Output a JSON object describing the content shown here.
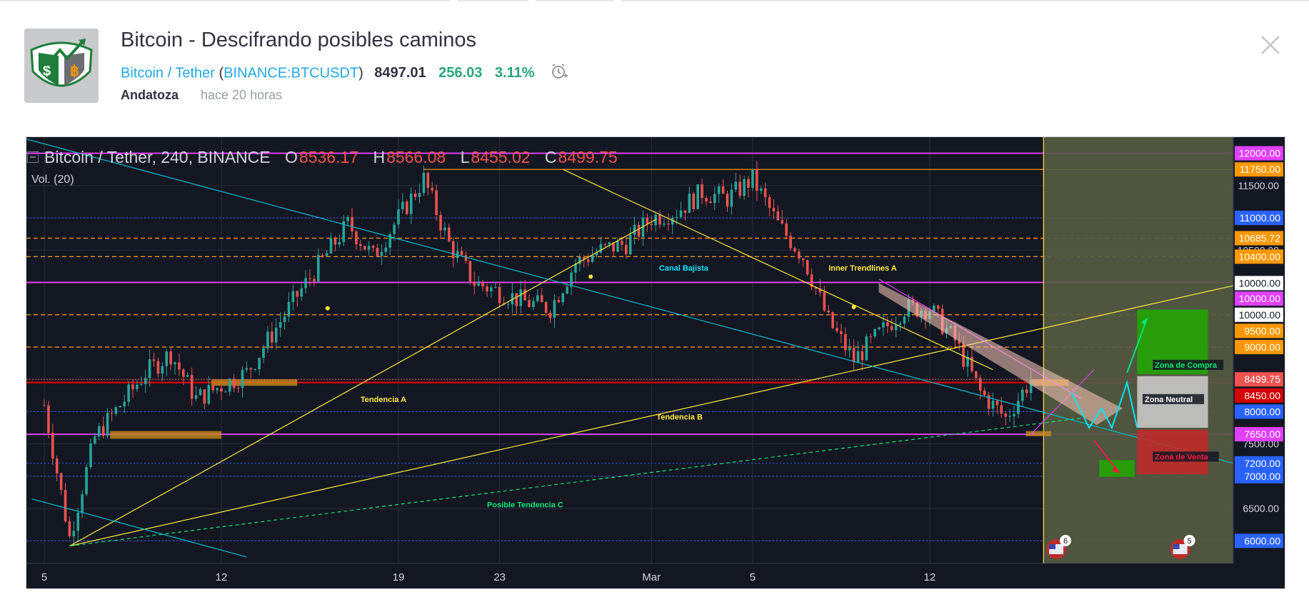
{
  "header": {
    "title": "Bitcoin - Descifrando posibles caminos",
    "symbol_name": "Bitcoin / Tether",
    "paren_open": " (",
    "ticker": "BINANCE:BTCUSDT",
    "paren_close": ")",
    "price": "8497.01",
    "change": "256.03",
    "change_pct": "3.11%",
    "author": "Andatoza",
    "time_ago": "hace 20 horas",
    "accent_color": "#1fa9e6",
    "up_color": "#26a67a"
  },
  "legend": {
    "symbol": "Bitcoin / Tether, 240, BINANCE",
    "o_label": "O",
    "o": "8536.17",
    "h_label": "H",
    "h": "8566.08",
    "l_label": "L",
    "l": "8455.02",
    "c_label": "C",
    "c": "8499.75",
    "volume": "Vol. (20)"
  },
  "chart_data": {
    "type": "candlestick",
    "symbol": "Bitcoin / Tether, 240, BINANCE",
    "ylim": [
      5650,
      12250
    ],
    "x_ticks": [
      "5",
      "12",
      "19",
      "23",
      "Mar",
      "5",
      "12"
    ],
    "y_ticks": [
      "11500.00",
      "10500.00",
      "9500.00",
      "8000.00",
      "7500.00",
      "6500.00"
    ],
    "approx_close_path": [
      {
        "x": "Feb 5",
        "y": 8100
      },
      {
        "x": "Feb 6",
        "y": 6050
      },
      {
        "x": "Feb 7",
        "y": 7600
      },
      {
        "x": "Feb 9",
        "y": 8600
      },
      {
        "x": "Feb 10",
        "y": 8900
      },
      {
        "x": "Feb 11",
        "y": 8200
      },
      {
        "x": "Feb 13",
        "y": 8600
      },
      {
        "x": "Feb 15",
        "y": 9800
      },
      {
        "x": "Feb 17",
        "y": 10900
      },
      {
        "x": "Feb 18",
        "y": 10400
      },
      {
        "x": "Feb 20",
        "y": 11600
      },
      {
        "x": "Feb 21",
        "y": 10600
      },
      {
        "x": "Feb 22",
        "y": 10000
      },
      {
        "x": "Feb 24",
        "y": 9700
      },
      {
        "x": "Feb 25",
        "y": 9600
      },
      {
        "x": "Feb 26",
        "y": 10300
      },
      {
        "x": "Feb 27",
        "y": 10500
      },
      {
        "x": "Feb 28",
        "y": 10600
      },
      {
        "x": "Mar 1",
        "y": 11000
      },
      {
        "x": "Mar 2",
        "y": 11100
      },
      {
        "x": "Mar 3",
        "y": 11400
      },
      {
        "x": "Mar 4",
        "y": 11300
      },
      {
        "x": "Mar 5",
        "y": 11600
      },
      {
        "x": "Mar 6",
        "y": 10900
      },
      {
        "x": "Mar 7",
        "y": 10400
      },
      {
        "x": "Mar 8",
        "y": 9400
      },
      {
        "x": "Mar 9",
        "y": 8800
      },
      {
        "x": "Mar 10",
        "y": 9200
      },
      {
        "x": "Mar 11",
        "y": 9600
      },
      {
        "x": "Mar 12",
        "y": 9600
      },
      {
        "x": "Mar 13",
        "y": 9100
      },
      {
        "x": "Mar 14",
        "y": 8300
      },
      {
        "x": "Mar 15",
        "y": 7900
      },
      {
        "x": "Mar 16",
        "y": 8499.75
      }
    ],
    "price_tags": [
      {
        "value": 12000,
        "label": "12000.00",
        "bg": "#e040fb",
        "fg": "#ffffff"
      },
      {
        "value": 11750,
        "label": "11750.00",
        "bg": "#ff9800",
        "fg": "#ffffff"
      },
      {
        "value": 11000,
        "label": "11000.00",
        "bg": "#2962ff",
        "fg": "#ffffff"
      },
      {
        "value": 10685.72,
        "label": "10685.72",
        "bg": "#ff9800",
        "fg": "#ffffff"
      },
      {
        "value": 10400,
        "label": "10400.00",
        "bg": "#ff9800",
        "fg": "#ffffff"
      },
      {
        "value": 10000,
        "label": "10000.00",
        "bg": "#ffffff",
        "fg": "#131722",
        "pos": 9990
      },
      {
        "value": 10000,
        "label": "10000.00",
        "bg": "#e040fb",
        "fg": "#ffffff",
        "pos": 9750
      },
      {
        "value": 10000,
        "label": "10000.00",
        "bg": "#ffffff",
        "fg": "#131722",
        "pos": 9500
      },
      {
        "value": 9500,
        "label": "9500.00",
        "bg": "#ff9800",
        "fg": "#ffffff",
        "pos": 9250
      },
      {
        "value": 9000,
        "label": "9000.00",
        "bg": "#ff9800",
        "fg": "#ffffff"
      },
      {
        "value": 8499.75,
        "label": "8499.75",
        "bg": "#ef5350",
        "fg": "#ffffff"
      },
      {
        "value": 8450,
        "label": "8450.00",
        "bg": "#d50000",
        "fg": "#ffffff",
        "pos": 8250
      },
      {
        "value": 8000,
        "label": "8000.00",
        "bg": "#2962ff",
        "fg": "#ffffff"
      },
      {
        "value": 7650,
        "label": "7650.00",
        "bg": "#e040fb",
        "fg": "#ffffff"
      },
      {
        "value": 7200,
        "label": "7200.00",
        "bg": "#2962ff",
        "fg": "#ffffff"
      },
      {
        "value": 7000,
        "label": "7000.00",
        "bg": "#2962ff",
        "fg": "#ffffff"
      },
      {
        "value": 6000,
        "label": "6000.00",
        "bg": "#2962ff",
        "fg": "#ffffff"
      }
    ],
    "annotations": [
      {
        "text": "Canal Bajista",
        "color": "#00e5ff"
      },
      {
        "text": "Inner Trendlines A",
        "color": "#ffeb3b"
      },
      {
        "text": "Tendencia A",
        "color": "#ffeb3b"
      },
      {
        "text": "Tendencia  B",
        "color": "#ffeb3b"
      },
      {
        "text": "Posible Tendencia C",
        "color": "#00e676"
      },
      {
        "text": "Zona de Compra",
        "color": "#00e676"
      },
      {
        "text": "Zona Neutral",
        "color": "#ffffff"
      },
      {
        "text": "Zona de Venta",
        "color": "#ff1744"
      }
    ],
    "event_badges": [
      "6",
      "5"
    ],
    "colors": {
      "up": "#26a69a",
      "down": "#ef5350",
      "background": "#131722"
    }
  }
}
